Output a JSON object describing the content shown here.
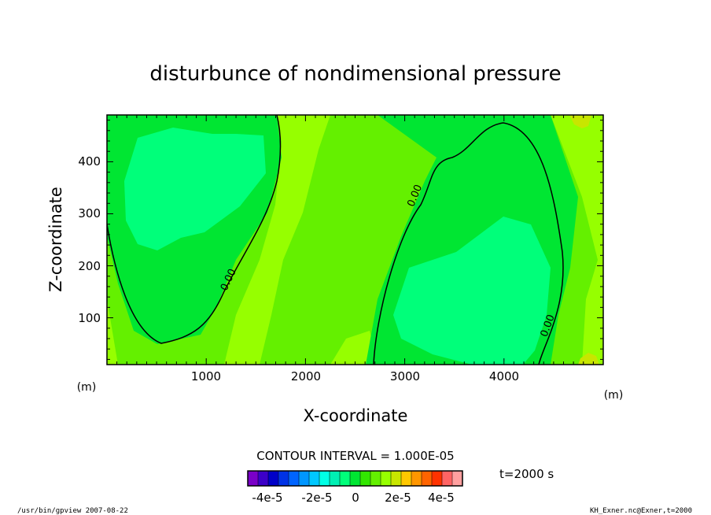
{
  "chart_data": {
    "type": "contour",
    "title": "disturbunce of nondimensional pressure",
    "xlabel": "X-coordinate",
    "ylabel": "Z-coordinate",
    "x_unit": "(m)",
    "y_unit": "(m)",
    "x_range": [
      0,
      5000
    ],
    "y_range": [
      10,
      490
    ],
    "x_ticks": [
      "1000",
      "2000",
      "3000",
      "4000"
    ],
    "y_ticks": [
      "100",
      "200",
      "300",
      "400"
    ],
    "contour_labels": [
      "0.00",
      "0.00",
      "0.00"
    ],
    "contour_interval_text": "CONTOUR INTERVAL = 1.000E-05",
    "time_text": "t=2000 s",
    "colorbar": {
      "colors": [
        "#7a00c8",
        "#3c00c8",
        "#0000c8",
        "#0032e6",
        "#0064ff",
        "#0096ff",
        "#00c8ff",
        "#00ffe6",
        "#00f0b4",
        "#00ff7a",
        "#00e632",
        "#32e600",
        "#64f000",
        "#96ff00",
        "#c8e600",
        "#ffc800",
        "#ff9600",
        "#ff6400",
        "#ff3200",
        "#ff6464",
        "#ffa0a0"
      ],
      "tick_labels": [
        "-4e-5",
        "-2e-5",
        "0",
        "2e-5",
        "4e-5"
      ]
    },
    "footer_left": "/usr/bin/gpview   2007-08-22",
    "footer_right": "KH_Exner.nc@Exner,t=2000"
  },
  "colors": {
    "bg_field": "#64f000",
    "green_mid": "#00e632",
    "green_light": "#00ff7a",
    "yellow_green": "#96ff00",
    "lime": "#c8e600"
  }
}
